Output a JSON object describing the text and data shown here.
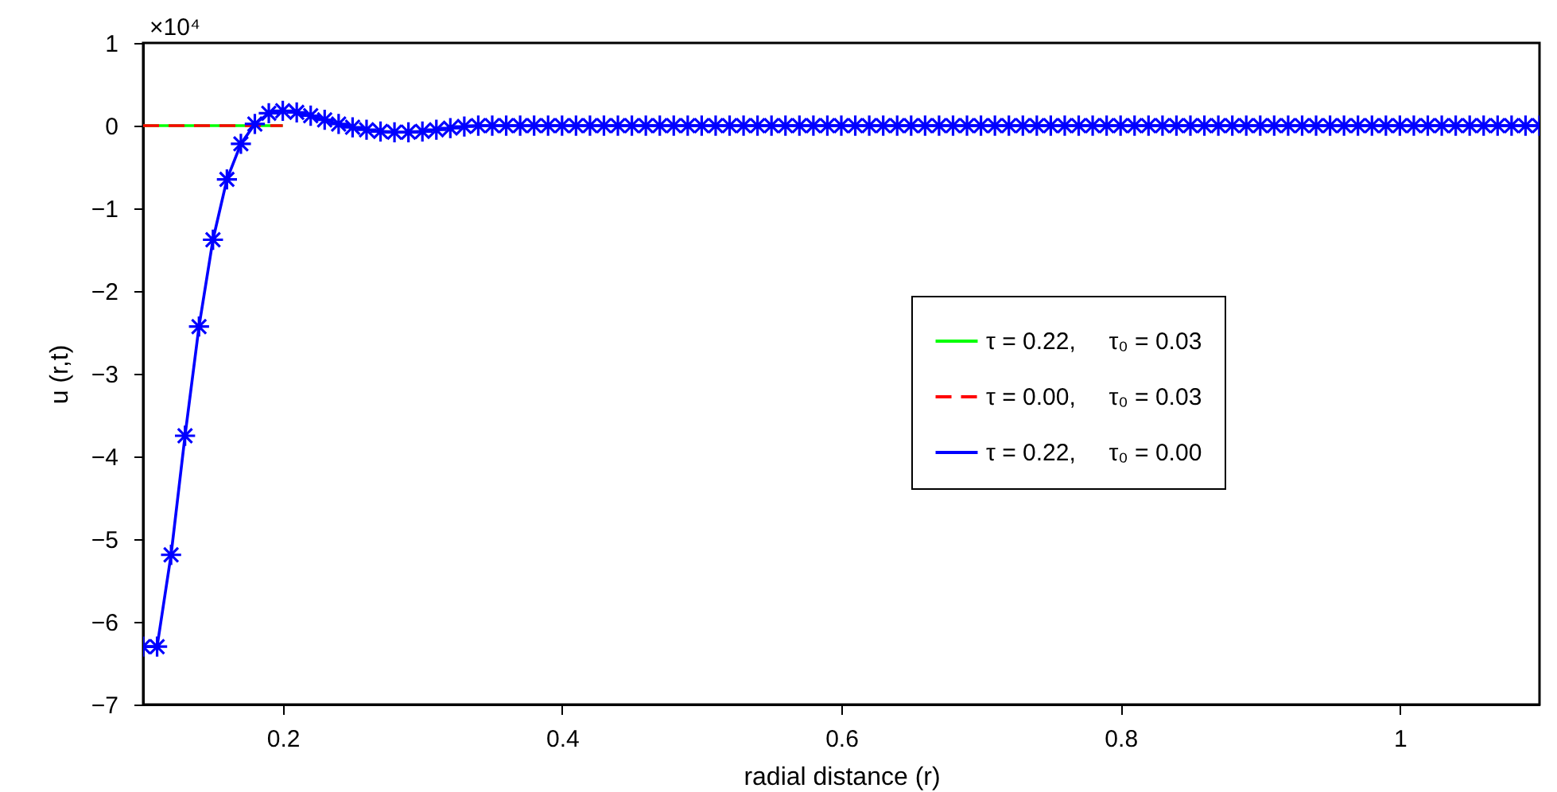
{
  "chart_data": {
    "type": "line",
    "xlabel": "radial distance (r)",
    "ylabel": "u (r,t)",
    "annotations": [
      "×10⁴"
    ],
    "xlim": [
      0.1,
      1.1
    ],
    "xticks": [
      0.2,
      0.4,
      0.6,
      0.8,
      1
    ],
    "ylim": [
      -7,
      1
    ],
    "yticks": [
      -7,
      -6,
      -5,
      -4,
      -3,
      -2,
      -1,
      0,
      1
    ],
    "grid": false,
    "legend": "right",
    "series": [
      {
        "name": "τ = 0.22,     τ₀ = 0.03",
        "color": "#00ff00",
        "line_style": "solid",
        "marker": "none",
        "x": [
          0.1,
          0.13,
          0.16,
          0.2
        ],
        "values": [
          0,
          0,
          0,
          0
        ]
      },
      {
        "name": "τ = 0.00,     τ₀ = 0.03",
        "color": "#ff0000",
        "line_style": "dashed",
        "marker": "none",
        "x": [
          0.1,
          0.13,
          0.16,
          0.2
        ],
        "values": [
          0,
          0,
          0,
          0
        ]
      },
      {
        "name": "τ = 0.22,     τ₀ = 0.00",
        "color": "#0000ff",
        "line_style": "solid",
        "marker": "cross",
        "x": [
          0.1,
          0.11,
          0.12,
          0.13,
          0.14,
          0.15,
          0.16,
          0.17,
          0.18,
          0.19,
          0.2,
          0.21,
          0.22,
          0.23,
          0.24,
          0.25,
          0.26,
          0.27,
          0.28,
          0.29,
          0.3,
          0.31,
          0.32,
          0.33,
          0.34,
          0.35,
          0.36,
          0.37,
          0.38,
          0.39,
          0.4,
          0.41,
          0.42,
          0.43,
          0.44,
          0.45,
          0.46,
          0.47,
          0.48,
          0.49,
          0.5,
          0.51,
          0.52,
          0.53,
          0.54,
          0.55,
          0.56,
          0.57,
          0.58,
          0.59,
          0.6,
          0.61,
          0.62,
          0.63,
          0.64,
          0.65,
          0.66,
          0.67,
          0.68,
          0.69,
          0.7,
          0.71,
          0.72,
          0.73,
          0.74,
          0.75,
          0.76,
          0.77,
          0.78,
          0.79,
          0.8,
          0.81,
          0.82,
          0.83,
          0.84,
          0.85,
          0.86,
          0.87,
          0.88,
          0.89,
          0.9,
          0.91,
          0.92,
          0.93,
          0.94,
          0.95,
          0.96,
          0.97,
          0.98,
          0.99,
          1.0,
          1.01,
          1.02,
          1.03,
          1.04,
          1.05,
          1.06,
          1.07,
          1.08,
          1.09,
          1.1
        ],
        "values": [
          -6.3,
          -6.3,
          -5.19,
          -3.75,
          -2.43,
          -1.38,
          -0.65,
          -0.22,
          0.02,
          0.15,
          0.18,
          0.16,
          0.12,
          0.07,
          0.02,
          -0.02,
          -0.05,
          -0.07,
          -0.08,
          -0.08,
          -0.07,
          -0.05,
          -0.03,
          -0.01,
          0,
          0,
          0,
          0,
          0,
          0,
          0,
          0,
          0,
          0,
          0,
          0,
          0,
          0,
          0,
          0,
          0,
          0,
          0,
          0,
          0,
          0,
          0,
          0,
          0,
          0,
          0,
          0,
          0,
          0,
          0,
          0,
          0,
          0,
          0,
          0,
          0,
          0,
          0,
          0,
          0,
          0,
          0,
          0,
          0,
          0,
          0,
          0,
          0,
          0,
          0,
          0,
          0,
          0,
          0,
          0,
          0,
          0,
          0,
          0,
          0,
          0,
          0,
          0,
          0,
          0,
          0,
          0,
          0,
          0,
          0,
          0,
          0,
          0,
          0,
          0,
          0
        ]
      }
    ]
  }
}
